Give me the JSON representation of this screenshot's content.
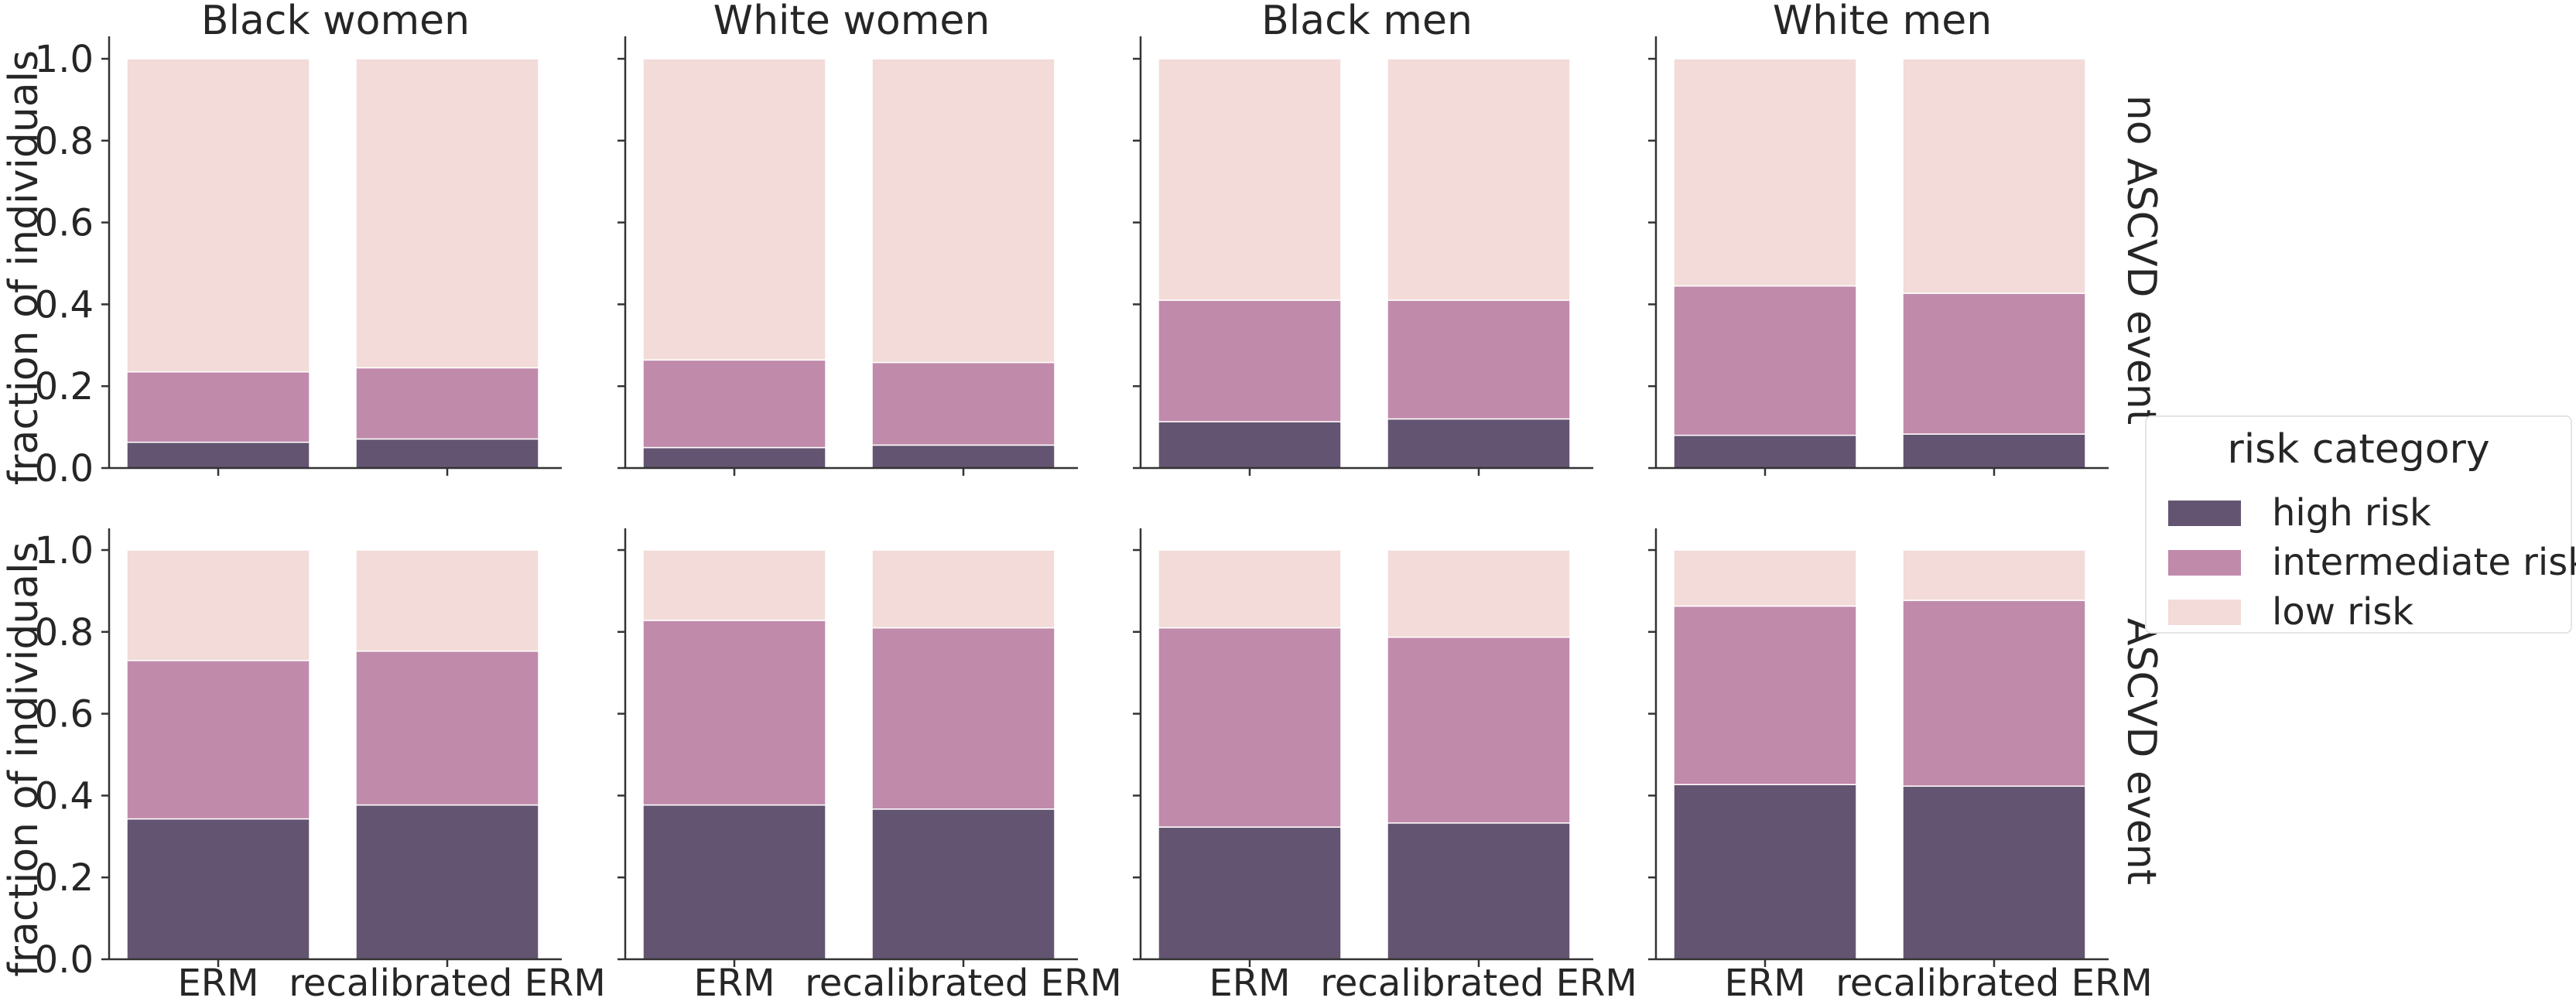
{
  "chart_data": {
    "type": "bar",
    "stacked": true,
    "categories": [
      "ERM",
      "recalibrated ERM"
    ],
    "columns": [
      "Black women",
      "White women",
      "Black men",
      "White men"
    ],
    "rows": [
      "no ASCVD event",
      "ASCVD event"
    ],
    "ylabel": "fraction of individuals",
    "ylim": [
      0,
      1.05
    ],
    "yticks": [
      "0.0",
      "0.2",
      "0.4",
      "0.6",
      "0.8",
      "1.0"
    ],
    "legend": {
      "title": "risk category",
      "placement": "right",
      "items": [
        {
          "label": "high risk",
          "color": "#635571"
        },
        {
          "label": "intermediate risk",
          "color": "#c08aab"
        },
        {
          "label": "low risk",
          "color": "#f2dbd8"
        }
      ]
    },
    "panels": [
      {
        "row": "no ASCVD event",
        "column": "Black women",
        "series": [
          {
            "name": "high risk",
            "values": [
              0.063,
              0.071
            ]
          },
          {
            "name": "intermediate risk",
            "values": [
              0.172,
              0.174
            ]
          },
          {
            "name": "low risk",
            "values": [
              0.765,
              0.755
            ]
          }
        ]
      },
      {
        "row": "no ASCVD event",
        "column": "White women",
        "series": [
          {
            "name": "high risk",
            "values": [
              0.05,
              0.056
            ]
          },
          {
            "name": "intermediate risk",
            "values": [
              0.214,
              0.202
            ]
          },
          {
            "name": "low risk",
            "values": [
              0.736,
              0.742
            ]
          }
        ]
      },
      {
        "row": "no ASCVD event",
        "column": "Black men",
        "series": [
          {
            "name": "high risk",
            "values": [
              0.113,
              0.12
            ]
          },
          {
            "name": "intermediate risk",
            "values": [
              0.297,
              0.29
            ]
          },
          {
            "name": "low risk",
            "values": [
              0.59,
              0.59
            ]
          }
        ]
      },
      {
        "row": "no ASCVD event",
        "column": "White men",
        "series": [
          {
            "name": "high risk",
            "values": [
              0.08,
              0.083
            ]
          },
          {
            "name": "intermediate risk",
            "values": [
              0.365,
              0.344
            ]
          },
          {
            "name": "low risk",
            "values": [
              0.555,
              0.573
            ]
          }
        ]
      },
      {
        "row": "ASCVD event",
        "column": "Black women",
        "series": [
          {
            "name": "high risk",
            "values": [
              0.343,
              0.377
            ]
          },
          {
            "name": "intermediate risk",
            "values": [
              0.387,
              0.376
            ]
          },
          {
            "name": "low risk",
            "values": [
              0.27,
              0.247
            ]
          }
        ]
      },
      {
        "row": "ASCVD event",
        "column": "White women",
        "series": [
          {
            "name": "high risk",
            "values": [
              0.377,
              0.367
            ]
          },
          {
            "name": "intermediate risk",
            "values": [
              0.451,
              0.443
            ]
          },
          {
            "name": "low risk",
            "values": [
              0.172,
              0.19
            ]
          }
        ]
      },
      {
        "row": "ASCVD event",
        "column": "Black men",
        "series": [
          {
            "name": "high risk",
            "values": [
              0.323,
              0.333
            ]
          },
          {
            "name": "intermediate risk",
            "values": [
              0.487,
              0.454
            ]
          },
          {
            "name": "low risk",
            "values": [
              0.19,
              0.213
            ]
          }
        ]
      },
      {
        "row": "ASCVD event",
        "column": "White men",
        "series": [
          {
            "name": "high risk",
            "values": [
              0.427,
              0.423
            ]
          },
          {
            "name": "intermediate risk",
            "values": [
              0.436,
              0.454
            ]
          },
          {
            "name": "low risk",
            "values": [
              0.137,
              0.123
            ]
          }
        ]
      }
    ]
  }
}
